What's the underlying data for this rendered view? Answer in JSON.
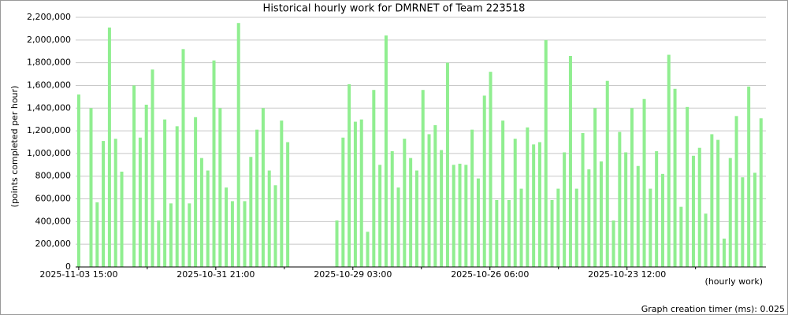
{
  "chart_data": {
    "type": "bar",
    "title": "Historical hourly work for DMRNET of Team 223518",
    "y_label": "(points completed per hour)",
    "x_label": "(hourly work)",
    "footer": "Graph creation timer (ms): 0.025",
    "color": "#90ee90",
    "grid": true,
    "categories": [
      null,
      null,
      null,
      null,
      null,
      null,
      null,
      null,
      null,
      null,
      null,
      null,
      null,
      null,
      null,
      null,
      null,
      null,
      null,
      null,
      null,
      null,
      null,
      null,
      null,
      null,
      null,
      null,
      null,
      null,
      null,
      null,
      null,
      null,
      null,
      null,
      null,
      null,
      null,
      null,
      null,
      null,
      null,
      null,
      null,
      null,
      null,
      null,
      null,
      null,
      null,
      null,
      null,
      null,
      null,
      null,
      null,
      null,
      null,
      null,
      null,
      null,
      null,
      null,
      null,
      null,
      null,
      null,
      null,
      null,
      null,
      null,
      null,
      null,
      null,
      null,
      null,
      null,
      null,
      null,
      null,
      null,
      null,
      null,
      null,
      null,
      null,
      null,
      null,
      null,
      null,
      null,
      null,
      null,
      null,
      null,
      null,
      null,
      null,
      null,
      null,
      null,
      null,
      null,
      null,
      null,
      null,
      null,
      null,
      null,
      null,
      null
    ],
    "values": [
      1520000,
      null,
      1400000,
      570000,
      1110000,
      2110000,
      1130000,
      840000,
      null,
      1600000,
      1140000,
      1430000,
      1740000,
      410000,
      1300000,
      560000,
      1240000,
      1920000,
      560000,
      1320000,
      960000,
      850000,
      1820000,
      1400000,
      700000,
      580000,
      2150000,
      580000,
      970000,
      1210000,
      1400000,
      850000,
      720000,
      1290000,
      1100000,
      null,
      null,
      null,
      null,
      null,
      null,
      null,
      410000,
      1140000,
      1610000,
      1280000,
      1300000,
      310000,
      1560000,
      900000,
      2040000,
      1020000,
      700000,
      1130000,
      960000,
      850000,
      1560000,
      1170000,
      1250000,
      1030000,
      1800000,
      900000,
      910000,
      900000,
      1210000,
      780000,
      1510000,
      1720000,
      590000,
      1290000,
      590000,
      1130000,
      690000,
      1230000,
      1080000,
      1100000,
      2000000,
      590000,
      690000,
      1010000,
      1860000,
      690000,
      1180000,
      860000,
      1400000,
      930000,
      1640000,
      410000,
      1190000,
      1010000,
      1400000,
      890000,
      1480000,
      690000,
      1020000,
      820000,
      1870000,
      1570000,
      530000,
      1410000,
      980000,
      1050000,
      470000,
      1170000,
      1120000,
      250000,
      960000,
      1330000,
      790000,
      1590000,
      830000,
      1310000
    ],
    "xlim": [
      -0.5,
      111.8
    ],
    "xticks": [
      {
        "value": 0,
        "label": "2025-11-03 15:00"
      },
      {
        "value": 22.3,
        "label": "2025-10-31 21:00"
      },
      {
        "value": 44.6,
        "label": "2025-10-29 03:00"
      },
      {
        "value": 66.9,
        "label": "2025-10-26 06:00"
      },
      {
        "value": 89.2,
        "label": "2025-10-23 12:00"
      }
    ],
    "xminorticks": [
      11.15,
      33.45,
      55.75,
      78.05,
      100.35
    ],
    "ylim": [
      0,
      2200000
    ],
    "yticks": [
      0,
      {
        "value": 200000,
        "label": "200,000"
      },
      {
        "value": 400000,
        "label": "400,000"
      },
      {
        "value": 600000,
        "label": "600,000"
      },
      {
        "value": 800000,
        "label": "800,000"
      },
      {
        "value": 1000000,
        "label": "1,000,000"
      },
      {
        "value": 1200000,
        "label": "1,200,000"
      },
      {
        "value": 1400000,
        "label": "1,400,000"
      },
      {
        "value": 1600000,
        "label": "1,600,000"
      },
      {
        "value": 1800000,
        "label": "1,800,000"
      },
      {
        "value": 2000000,
        "label": "2,000,000"
      },
      {
        "value": 2200000,
        "label": "2,200,000"
      }
    ]
  }
}
